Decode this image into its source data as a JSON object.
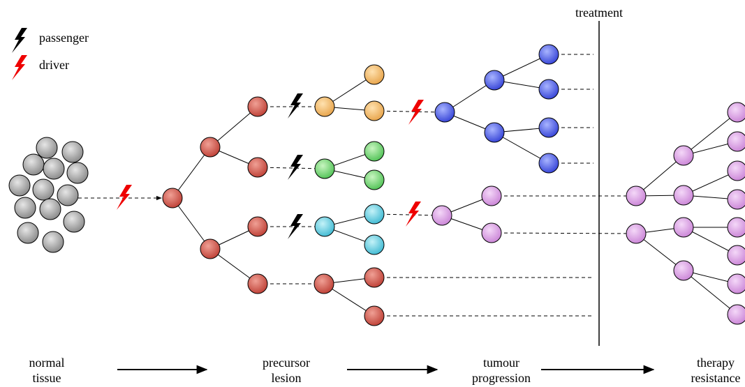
{
  "legend": {
    "passenger": "passenger",
    "driver": "driver"
  },
  "treatment": "treatment",
  "stages": [
    [
      "normal",
      "tissue"
    ],
    [
      "precursor",
      "lesion"
    ],
    [
      "tumour",
      "progression"
    ],
    [
      "therapy",
      "resistance"
    ]
  ]
}
